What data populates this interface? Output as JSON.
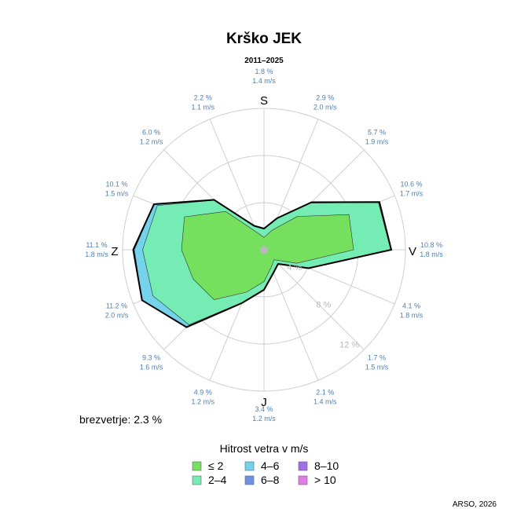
{
  "chart_data": {
    "type": "wind-rose",
    "title": "Krško JEK",
    "subtitle": "2011–2025",
    "compass": {
      "north": "S",
      "east": "V",
      "south": "J",
      "west": "Z"
    },
    "rings": [
      "4 %",
      "8 %",
      "12 %"
    ],
    "calm_label": "brezvetrje: 2.3 %",
    "legend_title": "Hitrost vetra v m/s",
    "source": "ARSO, 2026",
    "classes": [
      {
        "label": "≤ 2",
        "color": "#74e05e"
      },
      {
        "label": "2–4",
        "color": "#74ecb4"
      },
      {
        "label": "4–6",
        "color": "#74d3ea"
      },
      {
        "label": "6–8",
        "color": "#6f8fe3"
      },
      {
        "label": "8–10",
        "color": "#9f6fe6"
      },
      {
        "label": "> 10",
        "color": "#e07ee8"
      }
    ],
    "directions": [
      {
        "pct": "1.8 %",
        "speed": "1.4 m/s",
        "cum": [
          1.05,
          1.75,
          1.8,
          1.8,
          1.8,
          1.8
        ]
      },
      {
        "pct": "2.9 %",
        "speed": "2.0 m/s",
        "cum": [
          1.8,
          2.85,
          2.9,
          2.9,
          2.9,
          2.9
        ]
      },
      {
        "pct": "5.7 %",
        "speed": "1.9 m/s",
        "cum": [
          4.0,
          5.6,
          5.7,
          5.7,
          5.7,
          5.7
        ]
      },
      {
        "pct": "10.6 %",
        "speed": "1.7 m/s",
        "cum": [
          7.8,
          10.5,
          10.6,
          10.6,
          10.6,
          10.6
        ]
      },
      {
        "pct": "10.8 %",
        "speed": "1.8 m/s",
        "cum": [
          7.6,
          10.75,
          10.8,
          10.8,
          10.8,
          10.8
        ]
      },
      {
        "pct": "4.1 %",
        "speed": "1.8 m/s",
        "cum": [
          3.0,
          4.05,
          4.1,
          4.1,
          4.1,
          4.1
        ]
      },
      {
        "pct": "1.7 %",
        "speed": "1.5 m/s",
        "cum": [
          1.2,
          1.65,
          1.7,
          1.7,
          1.7,
          1.7
        ]
      },
      {
        "pct": "2.1 %",
        "speed": "1.4 m/s",
        "cum": [
          1.6,
          2.05,
          2.1,
          2.1,
          2.1,
          2.1
        ]
      },
      {
        "pct": "3.4 %",
        "speed": "1.2 m/s",
        "cum": [
          2.7,
          3.35,
          3.4,
          3.4,
          3.4,
          3.4
        ]
      },
      {
        "pct": "4.9 %",
        "speed": "1.2 m/s",
        "cum": [
          3.9,
          4.85,
          4.9,
          4.9,
          4.9,
          4.9
        ]
      },
      {
        "pct": "9.3 %",
        "speed": "1.6 m/s",
        "cum": [
          6.0,
          9.0,
          9.3,
          9.3,
          9.3,
          9.3
        ]
      },
      {
        "pct": "11.2 %",
        "speed": "2.0 m/s",
        "cum": [
          6.5,
          10.2,
          11.2,
          11.2,
          11.2,
          11.2
        ]
      },
      {
        "pct": "11.1 %",
        "speed": "1.8 m/s",
        "cum": [
          7.0,
          10.3,
          11.0,
          11.1,
          11.1,
          11.1
        ]
      },
      {
        "pct": "10.1 %",
        "speed": "1.5 m/s",
        "cum": [
          7.3,
          9.8,
          10.1,
          10.1,
          10.1,
          10.1
        ]
      },
      {
        "pct": "6.0 %",
        "speed": "1.2 m/s",
        "cum": [
          4.6,
          5.95,
          6.0,
          6.0,
          6.0,
          6.0
        ]
      },
      {
        "pct": "2.2 %",
        "speed": "1.1 m/s",
        "cum": [
          1.6,
          2.15,
          2.2,
          2.2,
          2.2,
          2.2
        ]
      }
    ]
  }
}
